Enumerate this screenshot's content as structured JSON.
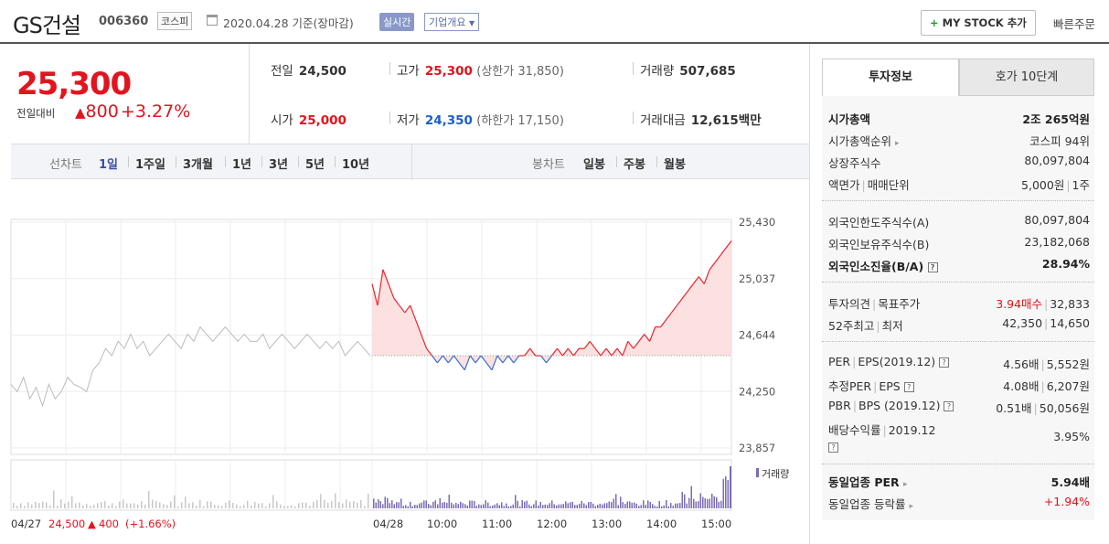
{
  "header": {
    "stock_name": "GS건설",
    "stock_code": "006360",
    "market": "코스피",
    "date_text": "2020.04.28  기준(장마감)",
    "realtime": "실시간",
    "company_overview": "기업개요",
    "mystock_label": "MY STOCK 추가",
    "quick_order": "빠른주문"
  },
  "price": {
    "current": "25,300",
    "prev_diff_label": "전일대비",
    "diff_value": "800",
    "diff_pct": "+3.27%"
  },
  "stats": {
    "prev_label": "전일",
    "prev_value": "24,500",
    "high_label": "고가",
    "high_value": "25,300",
    "upper_limit": "(상한가 31,850)",
    "volume_label": "거래량",
    "volume_value": "507,685",
    "open_label": "시가",
    "open_value": "25,000",
    "low_label": "저가",
    "low_value": "24,350",
    "lower_limit": "(하한가 17,150)",
    "amount_label": "거래대금",
    "amount_value": "12,615",
    "amount_unit": "백만"
  },
  "chart_tabs": {
    "line_label": "선차트",
    "line_periods": [
      "1일",
      "1주일",
      "3개월",
      "1년",
      "3년",
      "5년",
      "10년"
    ],
    "candle_label": "봉차트",
    "candle_periods": [
      "일봉",
      "주봉",
      "월봉"
    ]
  },
  "chart_data": {
    "type": "line",
    "y_ticks": [
      "25,430",
      "25,037",
      "24,644",
      "24,250",
      "23,857"
    ],
    "ylim": [
      23857,
      25430
    ],
    "x_labels": [
      "04/27",
      "04/28",
      "10:00",
      "11:00",
      "12:00",
      "13:00",
      "14:00",
      "15:00"
    ],
    "baseline": 24500,
    "volume_legend": "거래량",
    "prev_day_summary": {
      "date": "04/27",
      "close": "24,500",
      "change": "400",
      "pct": "(+1.66%)"
    },
    "series": [
      {
        "values_prev_day": [
          24300,
          24250,
          24350,
          24200,
          24280,
          24150,
          24300,
          24200,
          24250,
          24350,
          24300,
          24280,
          24250,
          24400,
          24450,
          24550,
          24500,
          24600,
          24550,
          24650,
          24550,
          24600,
          24500,
          24550,
          24600,
          24650,
          24600,
          24550,
          24650,
          24600,
          24700,
          24650,
          24600,
          24650,
          24700,
          24650,
          24600,
          24650,
          24600,
          24600,
          24650,
          24550,
          24600,
          24650,
          24600,
          24550,
          24600,
          24650,
          24600,
          24550,
          24600,
          24550,
          24600,
          24500,
          24550,
          24600,
          24550,
          24500
        ],
        "values_today": [
          25000,
          24850,
          25100,
          25000,
          24900,
          24850,
          24800,
          24850,
          24750,
          24650,
          24550,
          24500,
          24450,
          24500,
          24450,
          24500,
          24450,
          24400,
          24500,
          24450,
          24500,
          24450,
          24400,
          24500,
          24450,
          24500,
          24450,
          24500,
          24500,
          24550,
          24500,
          24500,
          24450,
          24500,
          24550,
          24500,
          24550,
          24500,
          24550,
          24550,
          24600,
          24550,
          24500,
          24550,
          24500,
          24550,
          24500,
          24600,
          24550,
          24600,
          24650,
          24600,
          24700,
          24700,
          24750,
          24800,
          24850,
          24900,
          24950,
          25000,
          25050,
          25000,
          25100,
          25150,
          25200,
          25250,
          25300
        ]
      }
    ]
  },
  "invest_tabs": {
    "active": "투자정보",
    "other": "호가 10단계"
  },
  "invest_info": {
    "group1": [
      {
        "label": "시가총액",
        "value": "2조 265억원"
      },
      {
        "label": "시가총액순위",
        "value": "코스피 94위"
      },
      {
        "label": "상장주식수",
        "value": "80,097,804"
      },
      {
        "label": "액면가",
        "label2": "매매단위",
        "value": "5,000원",
        "value2": "1주"
      }
    ],
    "group2": [
      {
        "label": "외국인한도주식수(A)",
        "value": "80,097,804"
      },
      {
        "label": "외국인보유주식수(B)",
        "value": "23,182,068"
      },
      {
        "label": "외국인소진율(B/A)",
        "value": "28.94%"
      }
    ],
    "group3": [
      {
        "label": "투자의견",
        "label2": "목표주가",
        "value": "3.94매수",
        "value2": "32,833"
      },
      {
        "label": "52주최고",
        "label2": "최저",
        "value": "42,350",
        "value2": "14,650"
      }
    ],
    "group4": [
      {
        "label": "PER",
        "label2": "EPS(2019.12)",
        "value": "4.56배",
        "value2": "5,552원"
      },
      {
        "label": "추정PER",
        "label2": "EPS",
        "value": "4.08배",
        "value2": "6,207원"
      },
      {
        "label": "PBR",
        "label2": "BPS (2019.12)",
        "value": "0.51배",
        "value2": "50,056원"
      },
      {
        "label": "배당수익률",
        "label2": "2019.12",
        "value": "3.95%"
      }
    ],
    "group5": [
      {
        "label": "동일업종 PER",
        "value": "5.94배"
      },
      {
        "label": "동일업종 등락률",
        "value": "+1.94%"
      }
    ]
  }
}
